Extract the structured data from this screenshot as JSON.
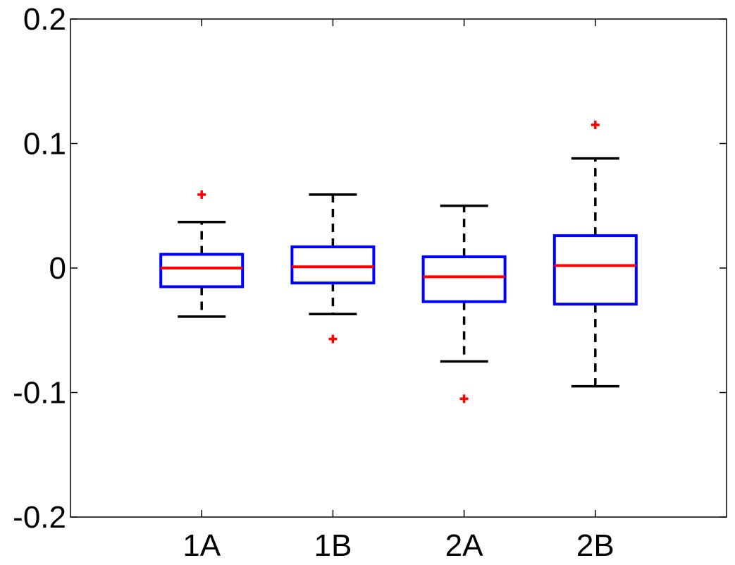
{
  "chart_data": {
    "type": "boxplot",
    "title": "",
    "xlabel": "",
    "ylabel": "",
    "ylim": [
      -0.2,
      0.2
    ],
    "yticks": [
      "-0.2",
      "-0.1",
      "0",
      "0.1",
      "0.2"
    ],
    "ytick_values": [
      -0.2,
      -0.1,
      0,
      0.1,
      0.2
    ],
    "grid": false,
    "categories": [
      "1A",
      "1B",
      "2A",
      "2B"
    ],
    "boxes": [
      {
        "category": "1A",
        "whisker_low": -0.039,
        "q1": -0.015,
        "median": 0.0,
        "q3": 0.011,
        "whisker_high": 0.037,
        "outliers": [
          0.059
        ]
      },
      {
        "category": "1B",
        "whisker_low": -0.037,
        "q1": -0.012,
        "median": 0.001,
        "q3": 0.017,
        "whisker_high": 0.059,
        "outliers": [
          -0.057
        ]
      },
      {
        "category": "2A",
        "whisker_low": -0.075,
        "q1": -0.027,
        "median": -0.007,
        "q3": 0.009,
        "whisker_high": 0.05,
        "outliers": [
          -0.105
        ]
      },
      {
        "category": "2B",
        "whisker_low": -0.095,
        "q1": -0.029,
        "median": 0.002,
        "q3": 0.026,
        "whisker_high": 0.088,
        "outliers": [
          0.115
        ]
      }
    ],
    "colors": {
      "box": "#0000ff",
      "median": "#ff0000",
      "whisker": "#000000",
      "outlier": "#ff0000",
      "axes": "#000000"
    }
  }
}
